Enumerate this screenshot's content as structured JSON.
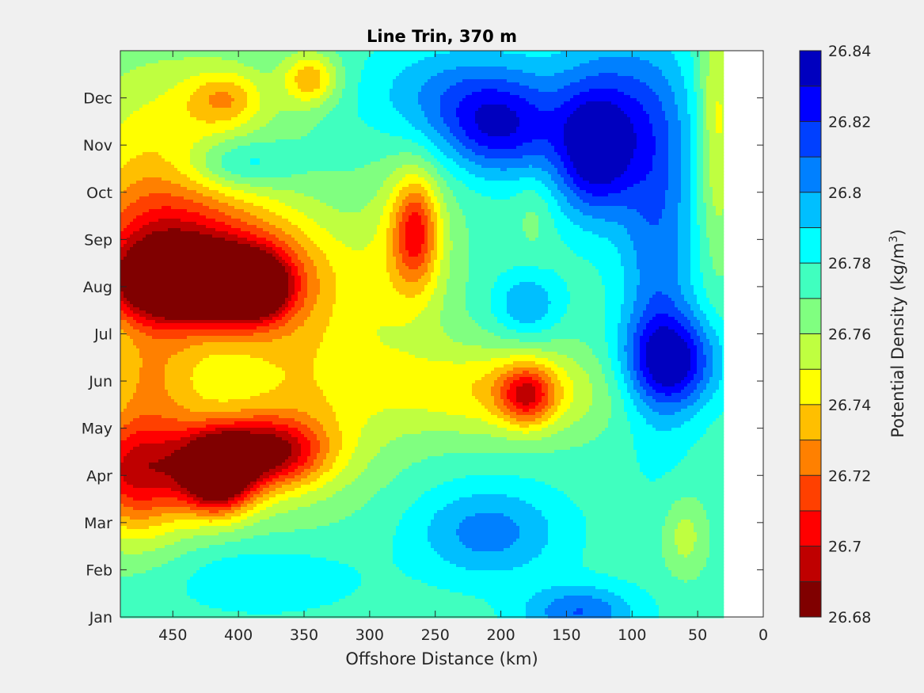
{
  "chart_data": {
    "type": "heatmap",
    "subtype": "filled-contour",
    "title": "Line Trin, 370 m",
    "xlabel": "Offshore Distance (km)",
    "x_axis": {
      "reversed": true,
      "range": [
        490,
        0
      ],
      "ticks": [
        450,
        400,
        350,
        300,
        250,
        200,
        150,
        100,
        50,
        0
      ]
    },
    "y_axis": {
      "range_months": [
        1,
        13
      ],
      "tick_labels": [
        "Jan",
        "Feb",
        "Mar",
        "Apr",
        "May",
        "Jun",
        "Jul",
        "Aug",
        "Sep",
        "Oct",
        "Nov",
        "Dec"
      ]
    },
    "data_coverage_x_km": [
      30,
      490
    ],
    "colorbar": {
      "label_prefix": "Potential Density (kg/m",
      "label_sup": "3",
      "label_suffix": ")",
      "location": "right",
      "range": [
        26.68,
        26.84
      ],
      "ticks": [
        "26.68",
        "26.7",
        "26.72",
        "26.74",
        "26.76",
        "26.78",
        "26.8",
        "26.82",
        "26.84"
      ],
      "levels": [
        26.68,
        26.69,
        26.7,
        26.71,
        26.72,
        26.73,
        26.74,
        26.75,
        26.76,
        26.77,
        26.78,
        26.79,
        26.8,
        26.81,
        26.82,
        26.83,
        26.84
      ],
      "colormap": [
        "#800000",
        "#bf0000",
        "#ff0000",
        "#ff4000",
        "#ff8000",
        "#ffbf00",
        "#ffff00",
        "#bfff40",
        "#80ff80",
        "#40ffbf",
        "#00ffff",
        "#00bfff",
        "#0080ff",
        "#0040ff",
        "#0000ff",
        "#0000bf"
      ]
    },
    "background_density": 26.775,
    "features": [
      {
        "x": 415,
        "month": 4.0,
        "value": 26.692,
        "sx": 18,
        "sy": 0.55
      },
      {
        "x": 375,
        "month": 4.5,
        "value": 26.716,
        "sx": 30,
        "sy": 0.5
      },
      {
        "x": 450,
        "month": 4.3,
        "value": 26.725,
        "sx": 55,
        "sy": 0.8
      },
      {
        "x": 480,
        "month": 3.8,
        "value": 26.735,
        "sx": 30,
        "sy": 1.0
      },
      {
        "x": 390,
        "month": 8.0,
        "value": 26.696,
        "sx": 18,
        "sy": 0.45
      },
      {
        "x": 450,
        "month": 8.0,
        "value": 26.703,
        "sx": 40,
        "sy": 0.6
      },
      {
        "x": 400,
        "month": 8.3,
        "value": 26.715,
        "sx": 55,
        "sy": 1.0
      },
      {
        "x": 470,
        "month": 9.0,
        "value": 26.735,
        "sx": 40,
        "sy": 1.0
      },
      {
        "x": 350,
        "month": 5.8,
        "value": 26.745,
        "sx": 50,
        "sy": 1.5
      },
      {
        "x": 470,
        "month": 6.2,
        "value": 26.74,
        "sx": 30,
        "sy": 0.8
      },
      {
        "x": 265,
        "month": 9.2,
        "value": 26.728,
        "sx": 12,
        "sy": 0.8
      },
      {
        "x": 270,
        "month": 8.8,
        "value": 26.75,
        "sx": 25,
        "sy": 1.4
      },
      {
        "x": 180,
        "month": 5.7,
        "value": 26.726,
        "sx": 15,
        "sy": 0.45
      },
      {
        "x": 200,
        "month": 5.8,
        "value": 26.74,
        "sx": 60,
        "sy": 0.7
      },
      {
        "x": 450,
        "month": 11.0,
        "value": 26.745,
        "sx": 60,
        "sy": 1.5
      },
      {
        "x": 345,
        "month": 12.4,
        "value": 26.735,
        "sx": 15,
        "sy": 0.4
      },
      {
        "x": 410,
        "month": 12.0,
        "value": 26.747,
        "sx": 20,
        "sy": 0.4
      },
      {
        "x": 70,
        "month": 6.4,
        "value": 26.83,
        "sx": 25,
        "sy": 0.7
      },
      {
        "x": 130,
        "month": 10.8,
        "value": 26.82,
        "sx": 20,
        "sy": 0.9
      },
      {
        "x": 80,
        "month": 8.5,
        "value": 26.805,
        "sx": 20,
        "sy": 2.5
      },
      {
        "x": 110,
        "month": 11.5,
        "value": 26.81,
        "sx": 35,
        "sy": 1.3
      },
      {
        "x": 200,
        "month": 11.3,
        "value": 26.815,
        "sx": 30,
        "sy": 0.7
      },
      {
        "x": 230,
        "month": 12.0,
        "value": 26.805,
        "sx": 50,
        "sy": 0.8
      },
      {
        "x": 400,
        "month": 10.6,
        "value": 26.805,
        "sx": 30,
        "sy": 0.4
      },
      {
        "x": 180,
        "month": 7.6,
        "value": 26.8,
        "sx": 18,
        "sy": 0.5
      },
      {
        "x": 210,
        "month": 2.8,
        "value": 26.805,
        "sx": 40,
        "sy": 0.7
      },
      {
        "x": 380,
        "month": 1.8,
        "value": 26.79,
        "sx": 50,
        "sy": 0.5
      },
      {
        "x": 140,
        "month": 1.1,
        "value": 26.81,
        "sx": 30,
        "sy": 0.4
      },
      {
        "x": 175,
        "month": 9.5,
        "value": 26.765,
        "sx": 10,
        "sy": 0.6
      },
      {
        "x": 60,
        "month": 2.7,
        "value": 26.755,
        "sx": 12,
        "sy": 0.6
      },
      {
        "x": 35,
        "month": 11.5,
        "value": 26.745,
        "sx": 10,
        "sy": 2.0
      }
    ]
  }
}
